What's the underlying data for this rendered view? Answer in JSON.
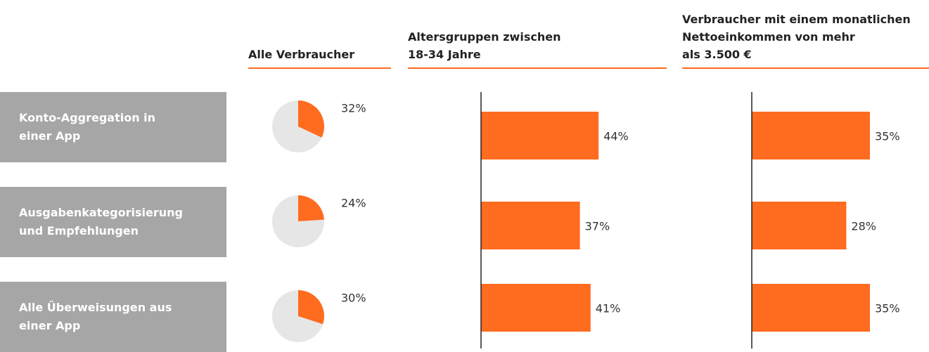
{
  "row_labels": [
    "Konto-Aggregation in\neiner App",
    "Ausgabenkategorisierung\nund Empfehlungen",
    "Alle Überweisungen aus\neiner App"
  ],
  "chart_data": [
    {
      "type": "pie",
      "title": "Alle Verbraucher",
      "values": [
        32,
        24,
        30
      ],
      "value_labels": [
        "32%",
        "24%",
        "30%"
      ],
      "color": "#ff6b1f",
      "background_color": "#e6e6e6"
    },
    {
      "type": "bar",
      "title": "Altersgruppen zwischen\n18-34 Jahre",
      "values": [
        44,
        37,
        41
      ],
      "value_labels": [
        "44%",
        "37%",
        "41%"
      ],
      "color": "#ff6b1f",
      "xlim": [
        0,
        70
      ]
    },
    {
      "type": "bar",
      "title": "Verbraucher mit einem monatlichen\nNettoeinkommen von mehr\nals 3.500 €",
      "values": [
        35,
        28,
        35
      ],
      "value_labels": [
        "35%",
        "28%",
        "35%"
      ],
      "color": "#ff6b1f",
      "xlim": [
        0,
        55
      ]
    }
  ]
}
